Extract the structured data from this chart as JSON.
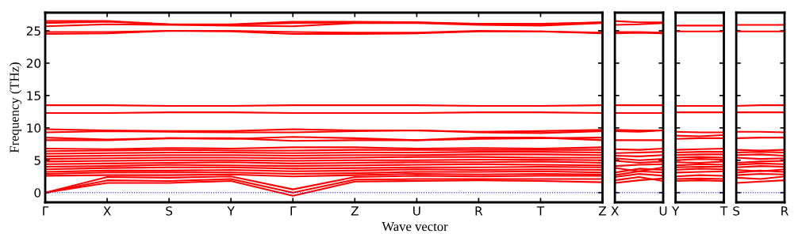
{
  "chart_data": [
    {
      "type": "line",
      "ylabel": "Frequency (THz)",
      "xlabel": "Wave vector",
      "legend": false,
      "categories": [
        "Γ",
        "X",
        "S",
        "Y",
        "Γ",
        "Z",
        "U",
        "R",
        "T",
        "Z"
      ],
      "ylim": [
        -1.5,
        27.8
      ],
      "yticks": [
        0,
        5,
        10,
        15,
        20,
        25
      ],
      "ref_lines": [
        {
          "axis": "y",
          "value": 0,
          "color": "#0000ff",
          "line_style": "dotted"
        }
      ],
      "series": [
        {
          "color": "#ff0000",
          "values": [
            0,
            1.5,
            1.5,
            1.8,
            -0.5,
            1.7,
            1.8,
            1.9,
            1.8,
            1.6
          ]
        },
        {
          "color": "#ff0000",
          "values": [
            0,
            1.9,
            1.8,
            2.1,
            0,
            2.0,
            2.1,
            2.1,
            2.1,
            2.1
          ]
        },
        {
          "color": "#ff0000",
          "values": [
            0,
            2.4,
            2.3,
            2.5,
            0.5,
            2.4,
            2.6,
            2.5,
            2.6,
            2.6
          ]
        },
        {
          "color": "#ff0000",
          "values": [
            2.6,
            2.7,
            2.7,
            2.8,
            2.5,
            2.7,
            2.9,
            2.8,
            2.9,
            2.8
          ]
        },
        {
          "color": "#ff0000",
          "values": [
            2.9,
            3.1,
            3.1,
            3.1,
            2.9,
            3.0,
            3.2,
            3.2,
            3.3,
            3.1
          ]
        },
        {
          "color": "#ff0000",
          "values": [
            3.2,
            3.4,
            3.4,
            3.5,
            3.3,
            3.4,
            3.6,
            3.5,
            3.6,
            3.5
          ]
        },
        {
          "color": "#ff0000",
          "values": [
            3.6,
            3.8,
            3.9,
            3.9,
            3.7,
            3.8,
            3.9,
            3.9,
            4.0,
            3.9
          ]
        },
        {
          "color": "#ff0000",
          "values": [
            4.0,
            4.1,
            4.3,
            4.2,
            4.1,
            4.2,
            4.3,
            4.4,
            4.3,
            4.2
          ]
        },
        {
          "color": "#ff0000",
          "values": [
            4.4,
            4.5,
            4.6,
            4.7,
            4.5,
            4.6,
            4.7,
            4.7,
            4.8,
            4.6
          ]
        },
        {
          "color": "#ff0000",
          "values": [
            4.8,
            4.9,
            5.0,
            5.0,
            4.9,
            5.0,
            5.0,
            5.1,
            5.1,
            5.0
          ]
        },
        {
          "color": "#ff0000",
          "values": [
            5.2,
            5.3,
            5.4,
            5.4,
            5.3,
            5.4,
            5.5,
            5.5,
            5.4,
            5.4
          ]
        },
        {
          "color": "#ff0000",
          "values": [
            5.6,
            5.7,
            5.8,
            5.8,
            5.7,
            5.8,
            5.8,
            5.9,
            5.9,
            5.8
          ]
        },
        {
          "color": "#ff0000",
          "values": [
            6.0,
            6.1,
            6.2,
            6.2,
            6.1,
            6.2,
            6.2,
            6.3,
            6.3,
            6.2
          ]
        },
        {
          "color": "#ff0000",
          "values": [
            6.4,
            6.5,
            6.6,
            6.5,
            6.5,
            6.6,
            6.6,
            6.6,
            6.6,
            6.6
          ]
        },
        {
          "color": "#ff0000",
          "values": [
            6.8,
            6.7,
            6.9,
            6.8,
            7.0,
            7.0,
            6.8,
            6.9,
            6.8,
            7.0
          ]
        },
        {
          "color": "#ff0000",
          "values": [
            8.1,
            8.1,
            8.4,
            8.4,
            8.0,
            8.1,
            8.1,
            8.5,
            8.5,
            8.1
          ]
        },
        {
          "color": "#ff0000",
          "values": [
            8.5,
            8.2,
            8.4,
            8.3,
            8.6,
            8.4,
            8.1,
            8.3,
            8.4,
            8.5
          ]
        },
        {
          "color": "#ff0000",
          "values": [
            9.3,
            9.5,
            9.4,
            9.3,
            9.3,
            9.5,
            9.6,
            9.3,
            9.2,
            9.5
          ]
        },
        {
          "color": "#ff0000",
          "values": [
            9.8,
            9.6,
            9.5,
            9.5,
            9.8,
            9.6,
            9.6,
            9.4,
            9.5,
            9.7
          ]
        },
        {
          "color": "#ff0000",
          "values": [
            12.3,
            12.3,
            12.4,
            12.4,
            12.3,
            12.3,
            12.3,
            12.4,
            12.4,
            12.3
          ]
        },
        {
          "color": "#ff0000",
          "values": [
            13.5,
            13.5,
            13.4,
            13.4,
            13.5,
            13.5,
            13.5,
            13.4,
            13.4,
            13.5
          ]
        },
        {
          "color": "#ff0000",
          "values": [
            24.5,
            24.6,
            25.0,
            24.9,
            24.5,
            24.5,
            24.6,
            24.9,
            24.9,
            24.6
          ]
        },
        {
          "color": "#ff0000",
          "values": [
            24.8,
            24.8,
            25.0,
            25.0,
            24.8,
            24.7,
            24.7,
            25.0,
            24.9,
            24.7
          ]
        },
        {
          "color": "#ff0000",
          "values": [
            25.7,
            26.0,
            25.9,
            25.8,
            25.7,
            26.2,
            26.2,
            25.9,
            25.8,
            26.2
          ]
        },
        {
          "color": "#ff0000",
          "values": [
            26.2,
            26.4,
            26.0,
            25.9,
            26.2,
            26.3,
            26.3,
            26.0,
            26.0,
            26.3
          ]
        },
        {
          "color": "#ff0000",
          "values": [
            26.5,
            26.5,
            26.0,
            26.0,
            26.4,
            26.4,
            26.3,
            26.1,
            26.1,
            26.3
          ]
        }
      ]
    },
    {
      "type": "line",
      "tick_labels": "x",
      "legend": false,
      "categories": [
        "X",
        null,
        "U"
      ],
      "ylim": [
        -1.5,
        27.8
      ],
      "yticks": [
        {
          "value": 0,
          "label": null
        },
        {
          "value": 5,
          "label": null
        },
        {
          "value": 10,
          "label": null
        },
        {
          "value": 15,
          "label": null
        },
        {
          "value": 20,
          "label": null
        },
        {
          "value": 25,
          "label": null
        }
      ],
      "ref_lines": [
        {
          "axis": "y",
          "value": 0,
          "color": "#0000ff",
          "line_style": "dotted"
        }
      ],
      "series": [
        {
          "color": "#ff0000",
          "values": [
            1.5,
            1.9,
            2.2
          ]
        },
        {
          "color": "#ff0000",
          "values": [
            1.9,
            2.4,
            1.8
          ]
        },
        {
          "color": "#ff0000",
          "values": [
            2.4,
            2.9,
            2.6
          ]
        },
        {
          "color": "#ff0000",
          "values": [
            2.7,
            3.3,
            3.1
          ]
        },
        {
          "color": "#ff0000",
          "values": [
            3.1,
            3.7,
            3.5
          ]
        },
        {
          "color": "#ff0000",
          "values": [
            3.8,
            3.3,
            3.9
          ]
        },
        {
          "color": "#ff0000",
          "values": [
            4.1,
            4.3,
            4.4
          ]
        },
        {
          "color": "#ff0000",
          "values": [
            4.9,
            4.6,
            4.8
          ]
        },
        {
          "color": "#ff0000",
          "values": [
            5.3,
            5.0,
            5.2
          ]
        },
        {
          "color": "#ff0000",
          "values": [
            5.7,
            5.6,
            5.8
          ]
        },
        {
          "color": "#ff0000",
          "values": [
            6.1,
            6.2,
            6.3
          ]
        },
        {
          "color": "#ff0000",
          "values": [
            6.7,
            6.6,
            6.8
          ]
        },
        {
          "color": "#ff0000",
          "values": [
            8.1,
            8.1,
            8.1
          ]
        },
        {
          "color": "#ff0000",
          "values": [
            9.5,
            9.4,
            9.6
          ]
        },
        {
          "color": "#ff0000",
          "values": [
            9.7,
            9.6,
            9.6
          ]
        },
        {
          "color": "#ff0000",
          "values": [
            12.3,
            12.3,
            12.3
          ]
        },
        {
          "color": "#ff0000",
          "values": [
            13.5,
            13.5,
            13.5
          ]
        },
        {
          "color": "#ff0000",
          "values": [
            24.6,
            24.7,
            24.6
          ]
        },
        {
          "color": "#ff0000",
          "values": [
            24.8,
            24.8,
            24.7
          ]
        },
        {
          "color": "#ff0000",
          "values": [
            25.9,
            26.0,
            26.2
          ]
        },
        {
          "color": "#ff0000",
          "values": [
            26.5,
            26.3,
            26.3
          ]
        }
      ]
    },
    {
      "type": "line",
      "tick_labels": "x",
      "legend": false,
      "categories": [
        "Y",
        null,
        "T"
      ],
      "ylim": [
        -1.5,
        27.8
      ],
      "yticks": [
        {
          "value": 0,
          "label": null
        },
        {
          "value": 5,
          "label": null
        },
        {
          "value": 10,
          "label": null
        },
        {
          "value": 15,
          "label": null
        },
        {
          "value": 20,
          "label": null
        },
        {
          "value": 25,
          "label": null
        }
      ],
      "ref_lines": [
        {
          "axis": "y",
          "value": 0,
          "color": "#0000ff",
          "line_style": "dotted"
        }
      ],
      "series": [
        {
          "color": "#ff0000",
          "values": [
            1.8,
            1.9,
            1.8
          ]
        },
        {
          "color": "#ff0000",
          "values": [
            2.1,
            2.2,
            2.1
          ]
        },
        {
          "color": "#ff0000",
          "values": [
            2.5,
            2.7,
            2.6
          ]
        },
        {
          "color": "#ff0000",
          "values": [
            3.1,
            3.2,
            3.3
          ]
        },
        {
          "color": "#ff0000",
          "values": [
            3.5,
            3.7,
            3.6
          ]
        },
        {
          "color": "#ff0000",
          "values": [
            3.9,
            4.0,
            4.0
          ]
        },
        {
          "color": "#ff0000",
          "values": [
            4.2,
            4.4,
            4.3
          ]
        },
        {
          "color": "#ff0000",
          "values": [
            4.7,
            4.6,
            4.8
          ]
        },
        {
          "color": "#ff0000",
          "values": [
            5.0,
            5.2,
            5.1
          ]
        },
        {
          "color": "#ff0000",
          "values": [
            5.4,
            5.5,
            5.4
          ]
        },
        {
          "color": "#ff0000",
          "values": [
            5.8,
            5.9,
            5.9
          ]
        },
        {
          "color": "#ff0000",
          "values": [
            6.2,
            6.3,
            6.3
          ]
        },
        {
          "color": "#ff0000",
          "values": [
            6.6,
            6.7,
            6.8
          ]
        },
        {
          "color": "#ff0000",
          "values": [
            8.3,
            8.4,
            8.4
          ]
        },
        {
          "color": "#ff0000",
          "values": [
            8.8,
            8.7,
            8.9
          ]
        },
        {
          "color": "#ff0000",
          "values": [
            9.4,
            9.3,
            9.3
          ]
        },
        {
          "color": "#ff0000",
          "values": [
            12.4,
            12.4,
            12.4
          ]
        },
        {
          "color": "#ff0000",
          "values": [
            13.4,
            13.4,
            13.4
          ]
        },
        {
          "color": "#ff0000",
          "values": [
            24.9,
            24.9,
            24.9
          ]
        },
        {
          "color": "#ff0000",
          "values": [
            25.8,
            25.8,
            25.8
          ]
        }
      ]
    },
    {
      "type": "line",
      "tick_labels": "x",
      "legend": false,
      "categories": [
        "S",
        null,
        "R"
      ],
      "ylim": [
        -1.5,
        27.8
      ],
      "yticks": [
        {
          "value": 0,
          "label": null
        },
        {
          "value": 5,
          "label": null
        },
        {
          "value": 10,
          "label": null
        },
        {
          "value": 15,
          "label": null
        },
        {
          "value": 20,
          "label": null
        },
        {
          "value": 25,
          "label": null
        }
      ],
      "ref_lines": [
        {
          "axis": "y",
          "value": 0,
          "color": "#0000ff",
          "line_style": "dotted"
        }
      ],
      "series": [
        {
          "color": "#ff0000",
          "values": [
            1.5,
            1.7,
            1.9
          ]
        },
        {
          "color": "#ff0000",
          "values": [
            2.3,
            2.1,
            2.5
          ]
        },
        {
          "color": "#ff0000",
          "values": [
            2.7,
            2.9,
            2.8
          ]
        },
        {
          "color": "#ff0000",
          "values": [
            3.1,
            3.4,
            3.2
          ]
        },
        {
          "color": "#ff0000",
          "values": [
            3.5,
            3.3,
            3.6
          ]
        },
        {
          "color": "#ff0000",
          "values": [
            3.9,
            4.1,
            4.0
          ]
        },
        {
          "color": "#ff0000",
          "values": [
            4.3,
            4.5,
            4.4
          ]
        },
        {
          "color": "#ff0000",
          "values": [
            4.6,
            4.8,
            4.9
          ]
        },
        {
          "color": "#ff0000",
          "values": [
            5.4,
            5.2,
            5.3
          ]
        },
        {
          "color": "#ff0000",
          "values": [
            5.8,
            5.9,
            5.7
          ]
        },
        {
          "color": "#ff0000",
          "values": [
            6.2,
            6.3,
            6.2
          ]
        },
        {
          "color": "#ff0000",
          "values": [
            6.6,
            6.5,
            6.6
          ]
        },
        {
          "color": "#ff0000",
          "values": [
            8.4,
            8.5,
            8.5
          ]
        },
        {
          "color": "#ff0000",
          "values": [
            9.4,
            9.4,
            9.3
          ]
        },
        {
          "color": "#ff0000",
          "values": [
            12.4,
            12.4,
            12.4
          ]
        },
        {
          "color": "#ff0000",
          "values": [
            13.4,
            13.5,
            13.5
          ]
        },
        {
          "color": "#ff0000",
          "values": [
            24.9,
            24.9,
            24.9
          ]
        },
        {
          "color": "#ff0000",
          "values": [
            25.9,
            25.9,
            25.9
          ]
        }
      ]
    }
  ]
}
